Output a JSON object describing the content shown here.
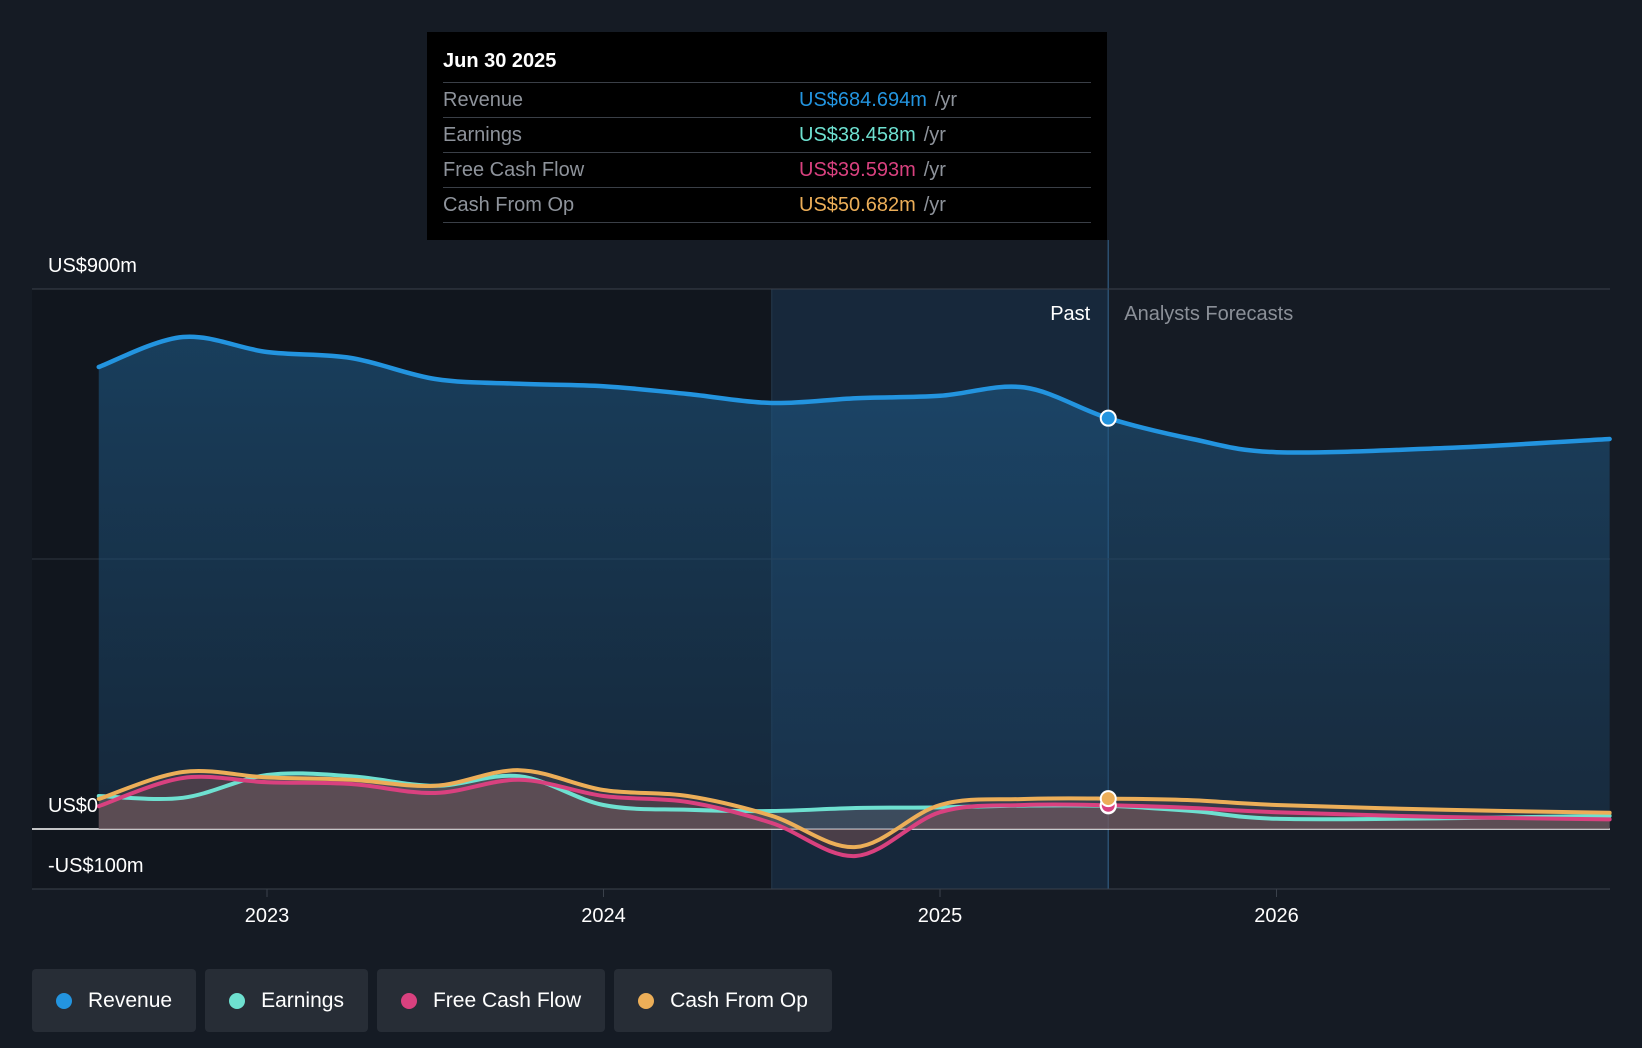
{
  "chart_data": {
    "type": "area",
    "y_unit_label_top": "US$900m",
    "y_unit_label_zero": "US$0",
    "y_unit_label_bottom": "-US$100m",
    "ylim": [
      -100,
      900
    ],
    "x_ticks": [
      "2023",
      "2024",
      "2025",
      "2026"
    ],
    "x_range": [
      2022.5,
      2026.99
    ],
    "past_label": "Past",
    "forecast_label": "Analysts Forecasts",
    "past_end": 2025.5,
    "highlight_start": 2024.5,
    "grid": true,
    "legend_position": "bottom",
    "series": [
      {
        "name": "Revenue",
        "color": "#2394df",
        "points": [
          [
            2022.5,
            770
          ],
          [
            2022.75,
            820
          ],
          [
            2023.0,
            795
          ],
          [
            2023.25,
            785
          ],
          [
            2023.5,
            750
          ],
          [
            2023.75,
            742
          ],
          [
            2024.0,
            738
          ],
          [
            2024.25,
            725
          ],
          [
            2024.5,
            710
          ],
          [
            2024.75,
            718
          ],
          [
            2025.0,
            722
          ],
          [
            2025.25,
            736
          ],
          [
            2025.5,
            684.694
          ],
          [
            2025.75,
            650
          ],
          [
            2026.0,
            628
          ],
          [
            2026.5,
            635
          ],
          [
            2026.99,
            650
          ]
        ]
      },
      {
        "name": "Earnings",
        "color": "#6ee0d0",
        "points": [
          [
            2022.5,
            55
          ],
          [
            2022.75,
            52
          ],
          [
            2023.0,
            90
          ],
          [
            2023.25,
            88
          ],
          [
            2023.5,
            72
          ],
          [
            2023.75,
            88
          ],
          [
            2024.0,
            40
          ],
          [
            2024.25,
            32
          ],
          [
            2024.5,
            30
          ],
          [
            2024.75,
            35
          ],
          [
            2025.0,
            36
          ],
          [
            2025.25,
            39
          ],
          [
            2025.5,
            38.458
          ],
          [
            2025.75,
            30
          ],
          [
            2026.0,
            17
          ],
          [
            2026.5,
            18
          ],
          [
            2026.99,
            22
          ]
        ]
      },
      {
        "name": "Free Cash Flow",
        "color": "#d9417f",
        "points": [
          [
            2022.5,
            38
          ],
          [
            2022.75,
            85
          ],
          [
            2023.0,
            78
          ],
          [
            2023.25,
            75
          ],
          [
            2023.5,
            60
          ],
          [
            2023.75,
            82
          ],
          [
            2024.0,
            55
          ],
          [
            2024.25,
            45
          ],
          [
            2024.5,
            10
          ],
          [
            2024.75,
            -45
          ],
          [
            2025.0,
            28
          ],
          [
            2025.25,
            40
          ],
          [
            2025.5,
            39.593
          ],
          [
            2025.75,
            35
          ],
          [
            2026.0,
            28
          ],
          [
            2026.5,
            20
          ],
          [
            2026.99,
            16
          ]
        ]
      },
      {
        "name": "Cash From Op",
        "color": "#ecae58",
        "points": [
          [
            2022.5,
            50
          ],
          [
            2022.75,
            95
          ],
          [
            2023.0,
            86
          ],
          [
            2023.25,
            82
          ],
          [
            2023.5,
            72
          ],
          [
            2023.75,
            98
          ],
          [
            2024.0,
            65
          ],
          [
            2024.25,
            55
          ],
          [
            2024.5,
            22
          ],
          [
            2024.75,
            -30
          ],
          [
            2025.0,
            40
          ],
          [
            2025.25,
            50
          ],
          [
            2025.5,
            50.682
          ],
          [
            2025.75,
            48
          ],
          [
            2026.0,
            40
          ],
          [
            2026.5,
            32
          ],
          [
            2026.99,
            27
          ]
        ]
      }
    ]
  },
  "tooltip": {
    "date": "Jun 30 2025",
    "rows": [
      {
        "label": "Revenue",
        "value": "US$684.694m",
        "unit": "/yr",
        "color": "#2394df"
      },
      {
        "label": "Earnings",
        "value": "US$38.458m",
        "unit": "/yr",
        "color": "#6ee0d0"
      },
      {
        "label": "Free Cash Flow",
        "value": "US$39.593m",
        "unit": "/yr",
        "color": "#d9417f"
      },
      {
        "label": "Cash From Op",
        "value": "US$50.682m",
        "unit": "/yr",
        "color": "#ecae58"
      }
    ]
  },
  "legend": [
    {
      "label": "Revenue",
      "color": "#2394df"
    },
    {
      "label": "Earnings",
      "color": "#6ee0d0"
    },
    {
      "label": "Free Cash Flow",
      "color": "#d9417f"
    },
    {
      "label": "Cash From Op",
      "color": "#ecae58"
    }
  ]
}
